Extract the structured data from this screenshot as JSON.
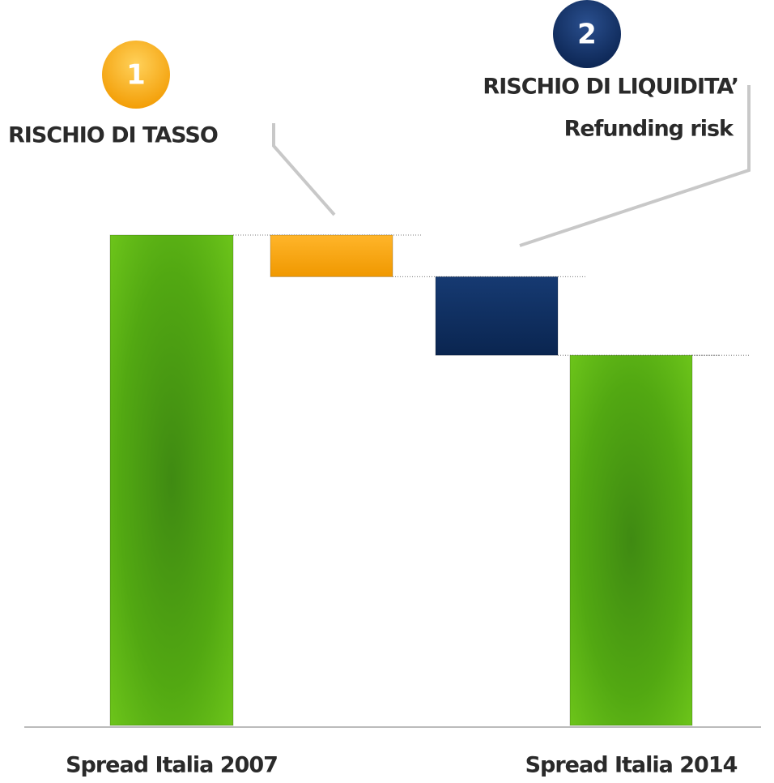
{
  "chart_data": {
    "type": "waterfall",
    "categories": [
      "Spread Italia 2007",
      null,
      null,
      "Spread Italia 2014"
    ],
    "values": [
      100,
      -8.5,
      -16,
      75.5
    ],
    "colors": [
      "#4a9e10",
      "#f7a30a",
      "#0c2a5c",
      "#4a9e10"
    ],
    "ylim": [
      0,
      100
    ],
    "annotations": [
      {
        "badge": "1",
        "label": "RISCHIO DI TASSO",
        "color": "#f7a30a"
      },
      {
        "badge": "2",
        "label": "RISCHIO DI LIQUIDITA’",
        "sublabel": "Refunding risk",
        "color": "#0c2a5c"
      }
    ]
  }
}
